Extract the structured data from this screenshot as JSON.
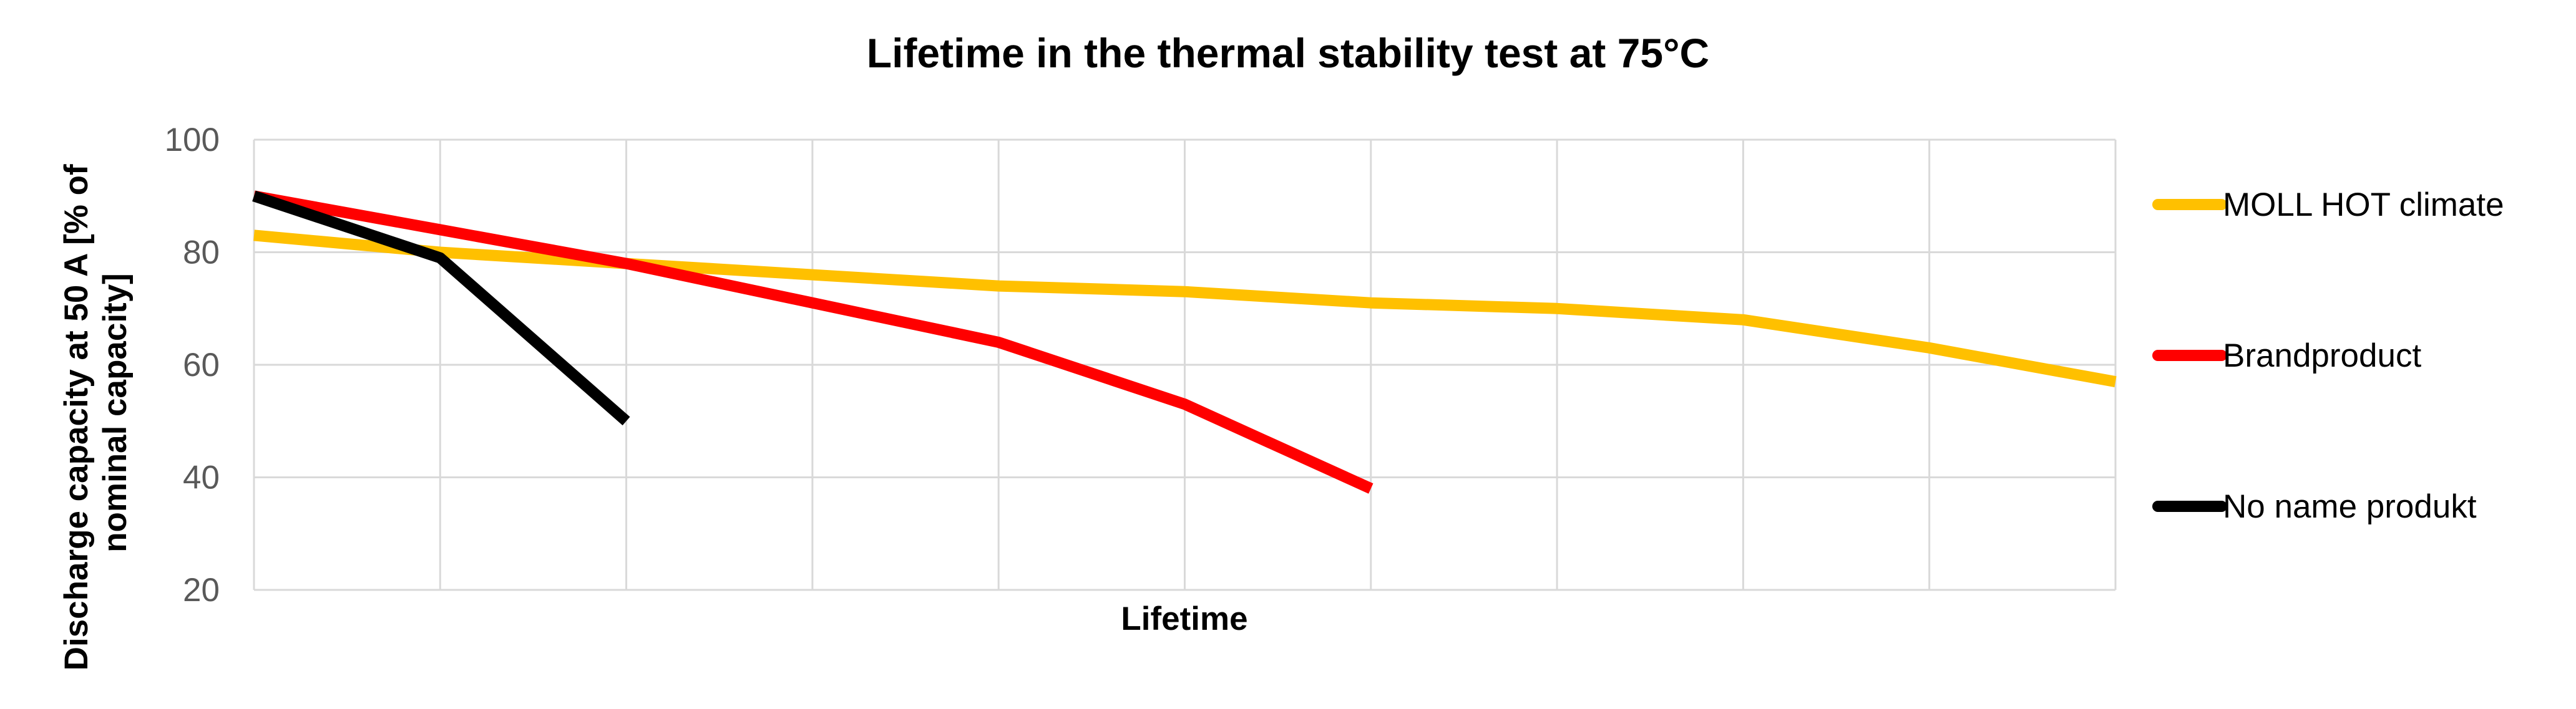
{
  "chart_data": {
    "type": "line",
    "title": "Lifetime in the thermal stability test at 75°C",
    "xlabel": "Lifetime",
    "ylabel": "Discharge capacity at 50 A [% of nominal capacity]",
    "ylabel_lines": [
      "Discharge capacity at 50 A [% of",
      "nominal capacity]"
    ],
    "ylim": [
      20,
      100
    ],
    "yticks": [
      20,
      40,
      60,
      80,
      100
    ],
    "x_points": 11,
    "grid": true,
    "legend_position": "right",
    "series": [
      {
        "name": "MOLL HOT climate",
        "color": "#FFC000",
        "values": [
          83,
          80,
          78,
          76,
          74,
          73,
          71,
          70,
          68,
          63,
          57
        ]
      },
      {
        "name": "Brandproduct",
        "color": "#FF0000",
        "values": [
          90,
          84,
          78,
          71,
          64,
          53,
          38
        ]
      },
      {
        "name": "No name produkt",
        "color": "#000000",
        "values": [
          90,
          79,
          50
        ]
      }
    ]
  }
}
